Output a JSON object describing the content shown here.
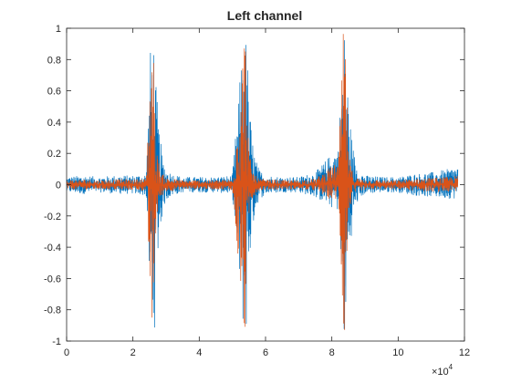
{
  "chart_data": {
    "type": "line",
    "title": "Left channel",
    "xlabel": "",
    "ylabel": "",
    "x_exponent_label": "×10",
    "x_exponent_power": "4",
    "xlim": [
      0,
      120000
    ],
    "ylim": [
      -1,
      1
    ],
    "x_ticks": [
      0,
      20000,
      40000,
      60000,
      80000,
      100000,
      120000
    ],
    "x_tick_labels": [
      "0",
      "2",
      "4",
      "6",
      "8",
      "10",
      "12"
    ],
    "y_ticks": [
      -1,
      -0.8,
      -0.6,
      -0.4,
      -0.2,
      0,
      0.2,
      0.4,
      0.6,
      0.8,
      1
    ],
    "y_tick_labels": [
      "-1",
      "-0.8",
      "-0.6",
      "-0.4",
      "-0.2",
      "0",
      "0.2",
      "0.4",
      "0.6",
      "0.8",
      "1"
    ],
    "grid": false,
    "series": [
      {
        "color": "#0072BD",
        "x": [
          0,
          5000,
          10000,
          15000,
          20000,
          24000,
          25500,
          26000,
          26500,
          27000,
          28000,
          29000,
          30000,
          32000,
          35000,
          40000,
          45000,
          50000,
          53500,
          54000,
          54500,
          55000,
          56000,
          57000,
          58000,
          60000,
          65000,
          70000,
          75000,
          80000,
          82000,
          83500,
          84000,
          84500,
          85000,
          86000,
          87000,
          88000,
          90000,
          95000,
          100000,
          105000,
          110000,
          115000,
          118000
        ],
        "upper": [
          0.05,
          0.06,
          0.05,
          0.06,
          0.06,
          0.07,
          1,
          1,
          0.95,
          0.62,
          0.35,
          0.17,
          0.1,
          0.07,
          0.05,
          0.05,
          0.05,
          0.06,
          1,
          1,
          0.85,
          0.55,
          0.3,
          0.17,
          0.1,
          0.06,
          0.05,
          0.05,
          0.08,
          0.2,
          0.25,
          1,
          1,
          0.85,
          0.55,
          0.3,
          0.17,
          0.1,
          0.06,
          0.05,
          0.05,
          0.07,
          0.08,
          0.1,
          0.12
        ],
        "lower": [
          -0.05,
          -0.06,
          -0.05,
          -0.06,
          -0.06,
          -0.07,
          -1,
          -1,
          -0.95,
          -0.62,
          -0.35,
          -0.17,
          -0.1,
          -0.07,
          -0.05,
          -0.05,
          -0.05,
          -0.06,
          -1,
          -1,
          -0.85,
          -0.55,
          -0.3,
          -0.17,
          -0.1,
          -0.06,
          -0.05,
          -0.05,
          -0.08,
          -0.15,
          -0.17,
          -1,
          -1,
          -0.85,
          -0.55,
          -0.3,
          -0.17,
          -0.1,
          -0.06,
          -0.05,
          -0.05,
          -0.07,
          -0.08,
          -0.09,
          -0.09
        ]
      },
      {
        "color": "#D95319",
        "x": [
          0,
          5000,
          10000,
          15000,
          20000,
          24000,
          25500,
          26000,
          26500,
          27000,
          28000,
          29000,
          30000,
          32000,
          35000,
          40000,
          45000,
          50000,
          53500,
          54000,
          54500,
          55000,
          56000,
          57000,
          58000,
          60000,
          65000,
          70000,
          75000,
          80000,
          82000,
          83500,
          84000,
          84500,
          85000,
          86000,
          87000,
          88000,
          90000,
          95000,
          100000,
          105000,
          110000,
          115000,
          118000
        ],
        "upper": [
          0.03,
          0.035,
          0.03,
          0.035,
          0.035,
          0.04,
          1,
          1,
          0.7,
          0.25,
          0.12,
          0.07,
          0.045,
          0.04,
          0.03,
          0.03,
          0.03,
          0.035,
          1,
          1,
          0.6,
          0.22,
          0.1,
          0.06,
          0.04,
          0.035,
          0.03,
          0.03,
          0.04,
          0.12,
          0.14,
          1,
          1,
          0.6,
          0.22,
          0.1,
          0.06,
          0.04,
          0.035,
          0.03,
          0.03,
          0.04,
          0.045,
          0.05,
          0.06
        ],
        "lower": [
          -0.03,
          -0.035,
          -0.03,
          -0.035,
          -0.035,
          -0.04,
          -1,
          -1,
          -0.7,
          -0.25,
          -0.12,
          -0.07,
          -0.045,
          -0.04,
          -0.03,
          -0.03,
          -0.03,
          -0.035,
          -1,
          -1,
          -0.6,
          -0.22,
          -0.1,
          -0.06,
          -0.04,
          -0.035,
          -0.03,
          -0.03,
          -0.04,
          -0.1,
          -0.1,
          -1,
          -1,
          -0.6,
          -0.22,
          -0.1,
          -0.06,
          -0.04,
          -0.035,
          -0.03,
          -0.03,
          -0.04,
          -0.045,
          -0.05,
          -0.05
        ]
      }
    ]
  }
}
